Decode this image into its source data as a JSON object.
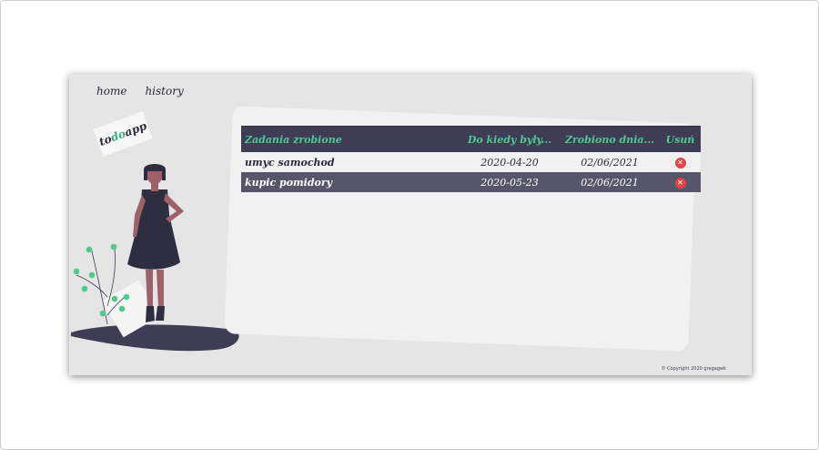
{
  "nav": {
    "home": "home",
    "history": "history"
  },
  "logo": {
    "part1": "to",
    "part2": "do",
    "part3": "app"
  },
  "table": {
    "headers": [
      "Zadania zrobione",
      "Do kiedy były...",
      "Zrobiono dnia...",
      "Usuń"
    ],
    "rows": [
      {
        "task": "umyc samochod",
        "due": "2020-04-20",
        "done": "02/06/2021"
      },
      {
        "task": "kupic pomidory",
        "due": "2020-05-23",
        "done": "02/06/2021"
      }
    ],
    "delete_glyph": "✕"
  },
  "footer": {
    "copyright": "© Copyright 2020 gregagwk"
  },
  "colors": {
    "accent": "#4ec98f",
    "header_bg": "#3f3d56",
    "delete": "#e04646"
  }
}
